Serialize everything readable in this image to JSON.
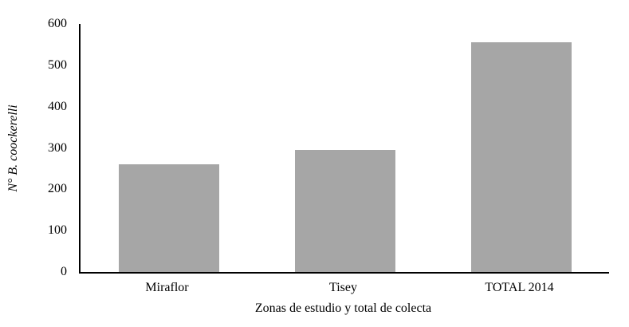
{
  "chart_data": {
    "type": "bar",
    "title": "",
    "categories": [
      "Miraflor",
      "Tisey",
      "TOTAL 2014"
    ],
    "values": [
      260,
      295,
      555
    ],
    "xlabel": "Zonas de estudio y total de colecta",
    "ylabel": "N° B. coockerelli",
    "ylim": [
      0,
      600
    ],
    "yticks": [
      0,
      100,
      200,
      300,
      400,
      500,
      600
    ],
    "ytick_interval": 100,
    "grid": "off",
    "legend": "none",
    "bar_color": "#a6a6a6",
    "axis_color": "#000000",
    "background_color": "#ffffff"
  }
}
